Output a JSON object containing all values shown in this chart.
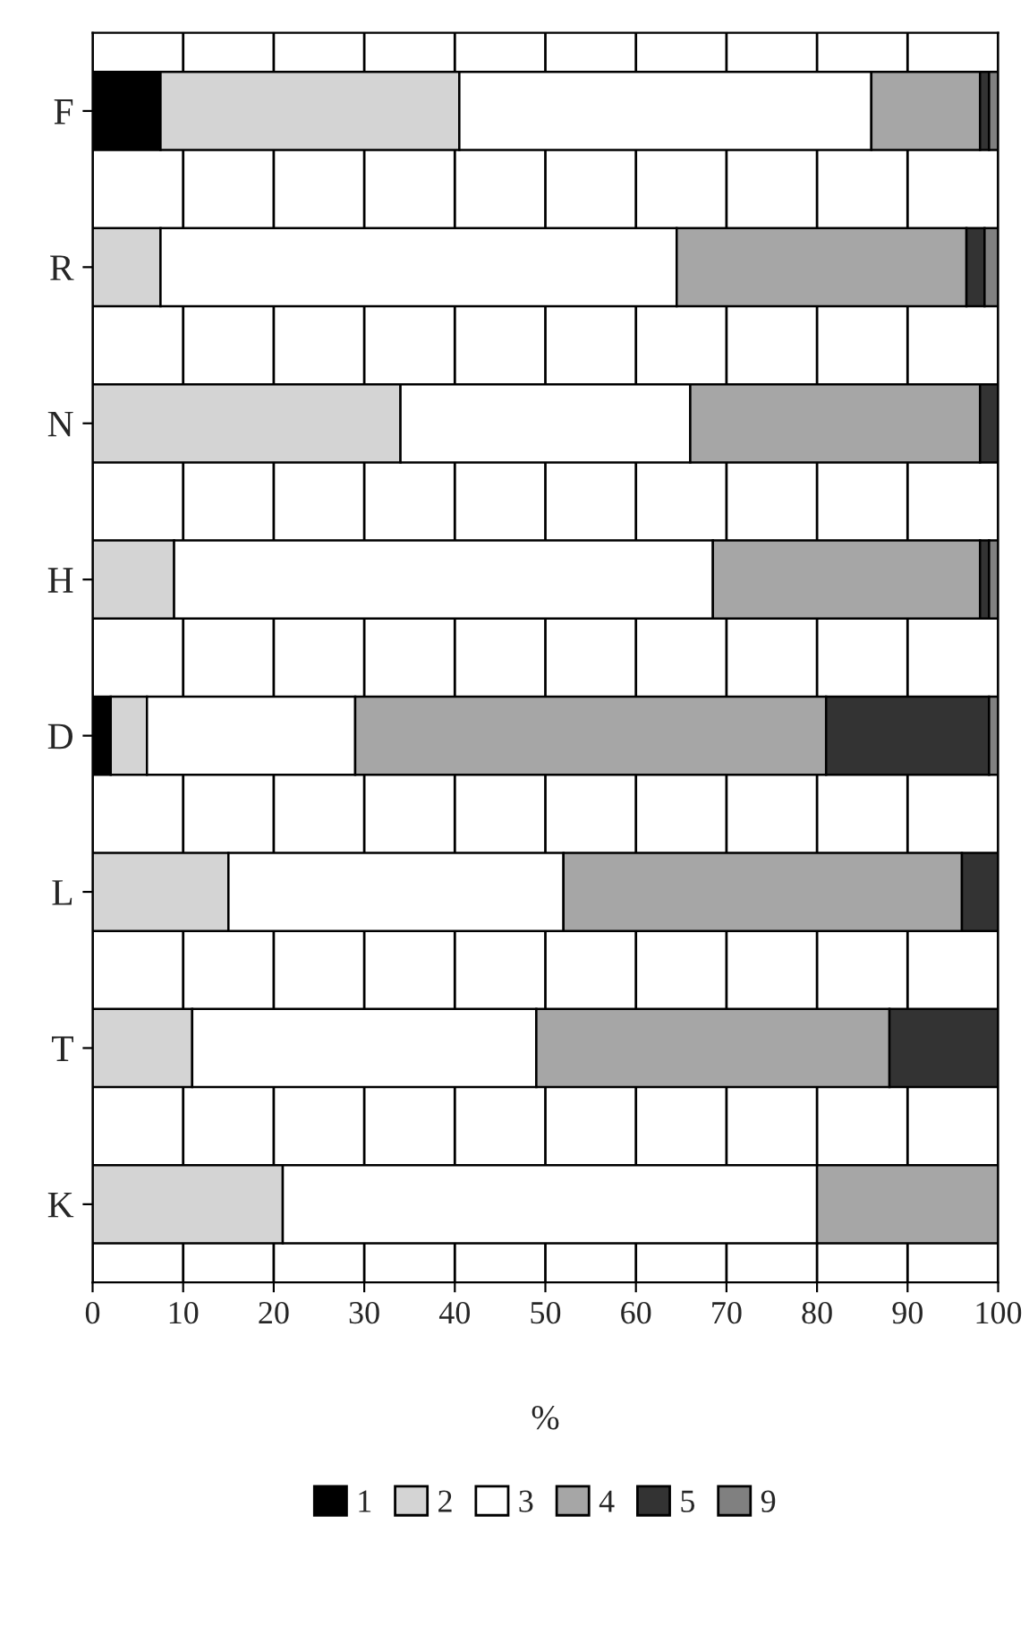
{
  "chart_data": {
    "type": "bar",
    "orientation": "horizontal",
    "stacked": true,
    "xlabel": "%",
    "categories": [
      "F",
      "R",
      "N",
      "H",
      "D",
      "L",
      "T",
      "K"
    ],
    "xlim": [
      0,
      100
    ],
    "xticks": [
      0,
      10,
      20,
      30,
      40,
      50,
      60,
      70,
      80,
      90,
      100
    ],
    "grid": "x",
    "legend": "bottom",
    "series": [
      {
        "name": "1",
        "color": "#000000",
        "values": [
          7.5,
          null,
          null,
          null,
          2,
          null,
          null,
          null
        ]
      },
      {
        "name": "2",
        "color": "#d4d4d4",
        "values": [
          33,
          7.5,
          34,
          9,
          4,
          15,
          11,
          21
        ]
      },
      {
        "name": "3",
        "color": "#ffffff",
        "values": [
          45.5,
          57,
          32,
          59.5,
          23,
          37,
          38,
          59
        ]
      },
      {
        "name": "4",
        "color": "#a6a6a6",
        "values": [
          12,
          32,
          32,
          29.5,
          52,
          44,
          39,
          20
        ]
      },
      {
        "name": "5",
        "color": "#333333",
        "values": [
          1,
          2,
          2,
          1,
          18,
          4,
          12,
          null
        ]
      },
      {
        "name": "9",
        "color": "#808080",
        "values": [
          1,
          1.5,
          null,
          1,
          1,
          null,
          null,
          null
        ]
      }
    ]
  }
}
